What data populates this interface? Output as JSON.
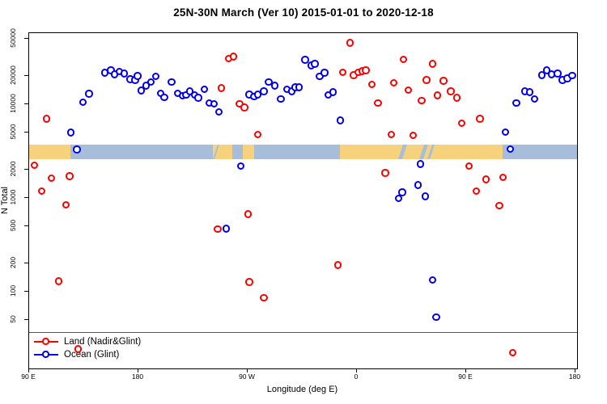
{
  "title": "25N-30N March (Ver 10)   2015-01-01 to 2020-12-18",
  "legend": {
    "items": [
      {
        "label": "Land (Nadir&Glint)",
        "color": "#ff0000"
      },
      {
        "label": "Ocean (Glint)",
        "color": "#0000ee"
      }
    ]
  },
  "chart_data": {
    "type": "scatter",
    "title": "25N-30N March (Ver 10)   2015-01-01 to 2020-12-18",
    "xlabel": "Longitude (deg E)",
    "ylabel": "N Total",
    "x_axis": {
      "note": "longitude unwrapped eastward from 90E; 90=90E, 180=180, 270=90W, 360=0, 450=90E, 540=180",
      "range": [
        90,
        541
      ],
      "ticks": [
        {
          "deg": 90,
          "label": "90 E"
        },
        {
          "deg": 180,
          "label": "180"
        },
        {
          "deg": 270,
          "label": "90 W"
        },
        {
          "deg": 360,
          "label": "0"
        },
        {
          "deg": 450,
          "label": "90 E"
        },
        {
          "deg": 540,
          "label": "180"
        }
      ]
    },
    "y_axis": {
      "scale": "log",
      "range": [
        15,
        60000
      ],
      "ticks": [
        50000,
        20000,
        10000,
        5000,
        2000,
        1000,
        500,
        200,
        100,
        50
      ]
    },
    "series": [
      {
        "name": "Land (Nadir&Glint)",
        "color": "#ff0000",
        "points": [
          [
            95,
            2200
          ],
          [
            101,
            1170
          ],
          [
            105,
            6900
          ],
          [
            109,
            1600
          ],
          [
            115,
            127
          ],
          [
            121,
            830
          ],
          [
            124,
            1680
          ],
          [
            131,
            24
          ],
          [
            246,
            460
          ],
          [
            249,
            14600
          ],
          [
            255,
            30400
          ],
          [
            259,
            31700
          ],
          [
            264,
            10000
          ],
          [
            268,
            9100
          ],
          [
            271,
            660
          ],
          [
            272,
            125
          ],
          [
            279,
            4700
          ],
          [
            284,
            85
          ],
          [
            345,
            190
          ],
          [
            349,
            21700
          ],
          [
            355,
            44400
          ],
          [
            358,
            20100
          ],
          [
            362,
            21700
          ],
          [
            365,
            22300
          ],
          [
            368,
            22800
          ],
          [
            373,
            16100
          ],
          [
            378,
            10200
          ],
          [
            384,
            1820
          ],
          [
            389,
            4700
          ],
          [
            391,
            16700
          ],
          [
            399,
            29800
          ],
          [
            403,
            14000
          ],
          [
            407,
            4600
          ],
          [
            414,
            10800
          ],
          [
            418,
            17800
          ],
          [
            423,
            26500
          ],
          [
            427,
            12300
          ],
          [
            432,
            17600
          ],
          [
            438,
            13500
          ],
          [
            443,
            11500
          ],
          [
            447,
            6200
          ],
          [
            453,
            2170
          ],
          [
            459,
            1170
          ],
          [
            462,
            6900
          ],
          [
            467,
            1550
          ],
          [
            478,
            820
          ],
          [
            481,
            1640
          ],
          [
            489,
            22
          ]
        ]
      },
      {
        "name": "Ocean (Glint)",
        "color": "#0000ee",
        "points": [
          [
            125,
            4900
          ],
          [
            130,
            3230
          ],
          [
            135,
            10400
          ],
          [
            140,
            12700
          ],
          [
            153,
            21300
          ],
          [
            158,
            22800
          ],
          [
            161,
            20500
          ],
          [
            165,
            22000
          ],
          [
            169,
            21000
          ],
          [
            174,
            18200
          ],
          [
            178,
            17800
          ],
          [
            180,
            19800
          ],
          [
            183,
            13800
          ],
          [
            187,
            15600
          ],
          [
            191,
            17000
          ],
          [
            195,
            19500
          ],
          [
            199,
            12900
          ],
          [
            202,
            11700
          ],
          [
            208,
            17000
          ],
          [
            213,
            12900
          ],
          [
            217,
            12200
          ],
          [
            220,
            12400
          ],
          [
            223,
            13600
          ],
          [
            227,
            12400
          ],
          [
            230,
            11500
          ],
          [
            235,
            14200
          ],
          [
            239,
            10200
          ],
          [
            243,
            10000
          ],
          [
            247,
            8200
          ],
          [
            253,
            462
          ],
          [
            265,
            2170
          ],
          [
            272,
            12550
          ],
          [
            276,
            11900
          ],
          [
            279,
            12550
          ],
          [
            284,
            13600
          ],
          [
            288,
            17100
          ],
          [
            293,
            15600
          ],
          [
            298,
            11200
          ],
          [
            303,
            14200
          ],
          [
            307,
            13600
          ],
          [
            310,
            15000
          ],
          [
            313,
            15000
          ],
          [
            318,
            29300
          ],
          [
            323,
            25500
          ],
          [
            326,
            26700
          ],
          [
            330,
            19500
          ],
          [
            334,
            21300
          ],
          [
            337,
            12400
          ],
          [
            341,
            13300
          ],
          [
            347,
            6600
          ],
          [
            395,
            980
          ],
          [
            398,
            1130
          ],
          [
            411,
            1350
          ],
          [
            413,
            2260
          ],
          [
            417,
            1030
          ],
          [
            423,
            132
          ],
          [
            426,
            53
          ],
          [
            483,
            4960
          ],
          [
            487,
            3270
          ],
          [
            492,
            10200
          ],
          [
            499,
            13600
          ],
          [
            503,
            13300
          ],
          [
            507,
            11200
          ],
          [
            513,
            20200
          ],
          [
            517,
            22800
          ],
          [
            521,
            20500
          ],
          [
            526,
            20900
          ],
          [
            530,
            17800
          ],
          [
            534,
            18600
          ],
          [
            538,
            19900
          ]
        ]
      }
    ],
    "map_strip": {
      "land_color": "#f7d27d",
      "ocean_color": "#a8bdd9",
      "segments": [
        {
          "type": "land",
          "from": 90,
          "to": 124
        },
        {
          "type": "ocean",
          "from": 124,
          "to": 241
        },
        {
          "type": "land",
          "from": 241,
          "to": 257
        },
        {
          "type": "ocean",
          "from": 257,
          "to": 266
        },
        {
          "type": "land",
          "from": 266,
          "to": 275
        },
        {
          "type": "ocean",
          "from": 275,
          "to": 346
        },
        {
          "type": "land",
          "from": 346,
          "to": 480
        },
        {
          "type": "ocean",
          "from": 480,
          "to": 541
        }
      ],
      "ocean_inlets": [
        {
          "from": 243,
          "to": 244.5
        },
        {
          "from": 396,
          "to": 399
        },
        {
          "from": 413,
          "to": 416
        },
        {
          "from": 420,
          "to": 422
        }
      ]
    }
  }
}
